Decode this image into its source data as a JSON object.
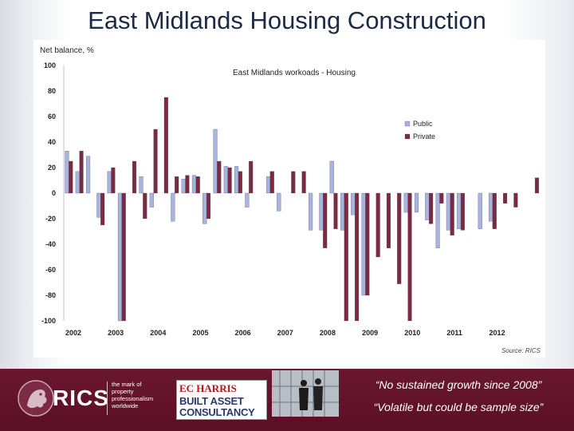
{
  "slide": {
    "title": "East Midlands Housing Construction"
  },
  "chart_data": {
    "type": "bar",
    "title": "East Midlands workoads - Housing",
    "ylabel": "Net balance, %",
    "xlabel": "",
    "ylim": [
      -100,
      100
    ],
    "yticks": [
      100,
      80,
      60,
      40,
      20,
      0,
      -20,
      -40,
      -60,
      -80,
      -100
    ],
    "year_labels": [
      "2002",
      "2003",
      "2004",
      "2005",
      "2006",
      "2007",
      "2008",
      "2009",
      "2010",
      "2011",
      "2012"
    ],
    "periods_per_year": 4,
    "legend_position": "right",
    "source": "Source: RICS",
    "series": [
      {
        "name": "Public",
        "color": "#a8b4e0",
        "values": [
          33,
          17,
          29,
          -19,
          17,
          -100,
          0,
          13,
          -11,
          0,
          -22,
          11,
          14,
          -24,
          50,
          21,
          21,
          -11,
          0,
          13,
          -14,
          0,
          0,
          -29,
          -29,
          25,
          -29,
          -17,
          -80,
          0,
          0,
          0,
          -15,
          -15,
          -21,
          -43,
          -29,
          -28,
          0,
          -28,
          -22,
          0,
          0,
          0,
          0
        ]
      },
      {
        "name": "Private",
        "color": "#7a2a44",
        "values": [
          25,
          33,
          0,
          -25,
          20,
          -100,
          25,
          -20,
          50,
          75,
          13,
          14,
          13,
          -20,
          25,
          20,
          17,
          25,
          0,
          17,
          0,
          17,
          17,
          0,
          -43,
          -28,
          -100,
          -100,
          -80,
          -50,
          -43,
          -71,
          -100,
          0,
          -24,
          -8,
          -33,
          -29,
          0,
          0,
          -28,
          -8,
          -11,
          0,
          12
        ]
      }
    ]
  },
  "footer": {
    "rics_name": "RICS",
    "rics_tagline": [
      "the mark of",
      "property",
      "professionalism",
      "worldwide"
    ],
    "partner_line1": "EC HARRIS",
    "partner_line2": "BUILT ASSET",
    "partner_line3": "CONSULTANCY",
    "quote_1": "“No sustained growth since 2008”",
    "quote_2": "“Volatile but could be sample size”"
  },
  "colors": {
    "footer_bg": "#5e1228",
    "public_bar": "#a8b4e0",
    "private_bar": "#7a2a44"
  },
  "icons": [
    "rics-lion-logo-icon",
    "business-people-photo"
  ]
}
